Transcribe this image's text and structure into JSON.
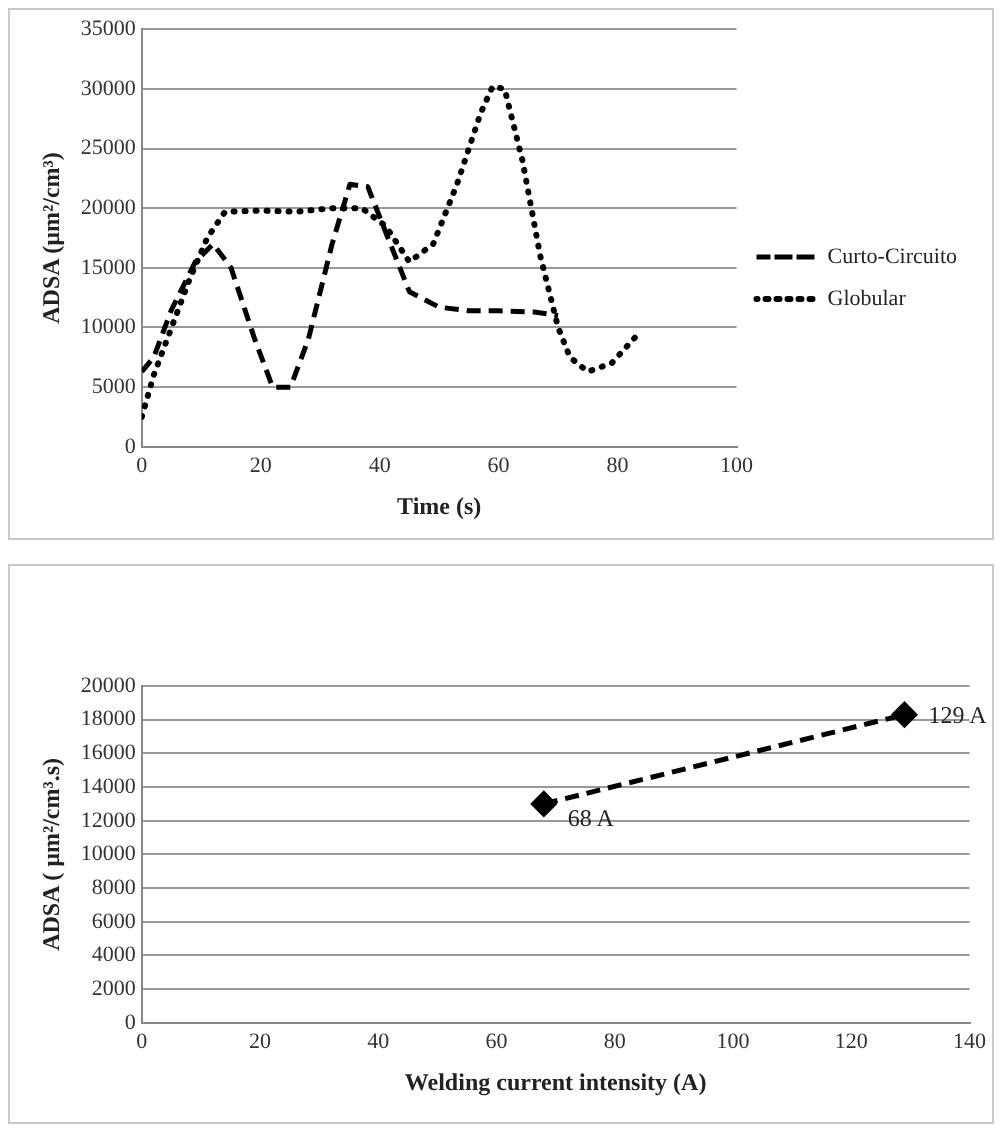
{
  "chart_data": [
    {
      "type": "line",
      "ylabel": "ADSA (µm²/cm³)",
      "xlabel": "Time (s)",
      "xlim": [
        0,
        100
      ],
      "xticks": [
        0,
        20,
        40,
        60,
        80,
        100
      ],
      "ylim": [
        0,
        35000
      ],
      "yticks": [
        0,
        5000,
        10000,
        15000,
        20000,
        25000,
        30000,
        35000
      ],
      "grid": "y",
      "legend": "right",
      "marker": "none",
      "series": [
        {
          "name": "Curto-Circuito",
          "color": "#000000",
          "line_style": "dashed",
          "x": [
            0,
            2,
            5,
            9,
            12,
            15,
            19,
            22,
            25,
            28,
            32,
            35,
            38,
            41,
            45,
            50,
            55,
            60,
            66,
            70
          ],
          "values": [
            6300,
            7500,
            11500,
            15500,
            17000,
            15000,
            9000,
            5000,
            5000,
            9000,
            17000,
            22000,
            21800,
            18000,
            13000,
            11700,
            11400,
            11400,
            11300,
            11000
          ]
        },
        {
          "name": "Globular",
          "color": "#000000",
          "line_style": "dotted",
          "x": [
            0,
            2,
            5,
            8,
            11,
            14,
            20,
            26,
            32,
            37,
            41,
            45,
            49,
            53,
            57,
            59,
            61,
            64,
            67,
            70,
            72,
            75,
            79,
            83
          ],
          "values": [
            2500,
            6000,
            10000,
            14000,
            17500,
            19700,
            19800,
            19700,
            20000,
            20000,
            18500,
            15500,
            17000,
            22000,
            28000,
            30200,
            30000,
            24000,
            16000,
            10000,
            7500,
            6300,
            7000,
            9200
          ]
        }
      ]
    },
    {
      "type": "line",
      "ylabel": "ADSA ( µm²/cm³.s)",
      "xlabel": "Welding current intensity (A)",
      "xlim": [
        0,
        140
      ],
      "xticks": [
        0,
        20,
        40,
        60,
        80,
        100,
        120,
        140
      ],
      "ylim": [
        0,
        20000
      ],
      "yticks": [
        0,
        2000,
        4000,
        6000,
        8000,
        10000,
        12000,
        14000,
        16000,
        18000,
        20000
      ],
      "grid": "y",
      "legend": false,
      "marker": "diamond",
      "line_style": "dashed",
      "series": [
        {
          "color": "#000000",
          "x": [
            68,
            129
          ],
          "values": [
            13000,
            18300
          ]
        }
      ],
      "annotations": [
        {
          "text": "68 A",
          "x": 68,
          "y": 13000
        },
        {
          "text": "129 A",
          "x": 129,
          "y": 18300
        }
      ]
    }
  ]
}
